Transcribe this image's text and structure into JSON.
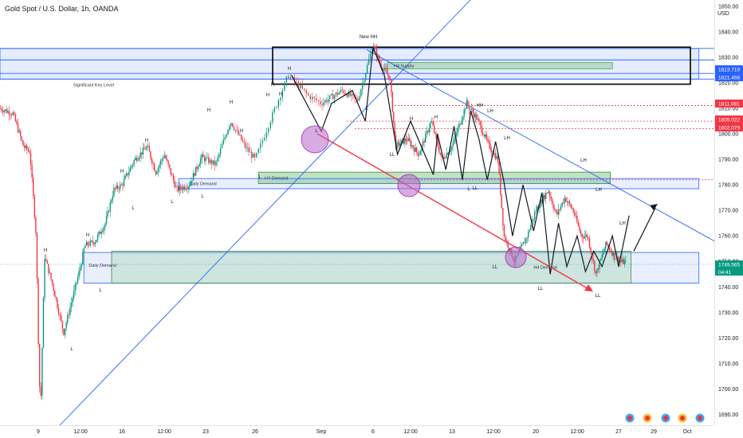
{
  "header": {
    "title": "Gold Spot / U.S. Dollar, 1h, OANDA",
    "currency": "USD"
  },
  "chart_data": {
    "type": "candlestick",
    "y_axis": {
      "ticks": [
        1690,
        1700,
        1710,
        1720,
        1730,
        1740,
        1750,
        1760,
        1770,
        1780,
        1790,
        1800,
        1810,
        1820,
        1830,
        1840,
        1850
      ],
      "range": [
        1687,
        1850
      ]
    },
    "x_axis": {
      "ticks": [
        {
          "label": "9",
          "x": 0.0
        },
        {
          "label": "12:00",
          "x": 1.0
        },
        {
          "label": "16",
          "x": 2.0
        },
        {
          "label": "12:00",
          "x": 3.0
        },
        {
          "label": "23",
          "x": 4.0
        },
        {
          "label": "26",
          "x": 5.0
        },
        {
          "label": "Sep",
          "x": 6.0
        },
        {
          "label": "6",
          "x": 7.0
        },
        {
          "label": "12:00",
          "x": 8.0
        },
        {
          "label": "13",
          "x": 9.0
        },
        {
          "label": "12:00",
          "x": 10.0
        },
        {
          "label": "20",
          "x": 11.0
        },
        {
          "label": "12:00",
          "x": 12.0
        },
        {
          "label": "27",
          "x": 13.0
        },
        {
          "label": "29",
          "x": 14.0
        },
        {
          "label": "Oct",
          "x": 15.0
        }
      ]
    },
    "price_tags": [
      {
        "value": "1823.719",
        "price": 1823.7,
        "color": "#2962ff"
      },
      {
        "value": "1821.468",
        "price": 1821.5,
        "color": "#2962ff"
      },
      {
        "value": "1811.081",
        "price": 1811.1,
        "color": "#f23645"
      },
      {
        "value": "1805.022",
        "price": 1805.0,
        "color": "#f23645"
      },
      {
        "value": "1802.079",
        "price": 1802.1,
        "color": "#f23645"
      },
      {
        "value": "1749.565",
        "price": 1749.6,
        "color": "#089981"
      }
    ],
    "countdown": "04:41",
    "zones": [
      {
        "label": "Significant Key Level",
        "kind": "key-level",
        "top": 1833.5,
        "bottom": 1821.5,
        "x0": 0.0,
        "x1": 15.35
      },
      {
        "label": "H4 Supply",
        "kind": "supply",
        "top": 1828.0,
        "bottom": 1825.5,
        "x0": 7.38,
        "x1": 12.85
      },
      {
        "label": "H4 Demand",
        "kind": "demand",
        "top": 1785.0,
        "bottom": 1780.5,
        "x0": 5.05,
        "x1": 12.8
      },
      {
        "label": "Daily Demand",
        "kind": "daily",
        "top": 1782.5,
        "bottom": 1778.5,
        "x0": 3.35,
        "x1": 15.35
      },
      {
        "label": "Daily Demand",
        "kind": "daily-lower",
        "top": 1753.5,
        "bottom": 1741.5,
        "x0": 1.08,
        "x1": 15.35
      },
      {
        "label": "H4 Demand",
        "kind": "demand-lower",
        "top": 1754.0,
        "bottom": 1741.5,
        "x0": 1.75,
        "x1": 13.35
      }
    ],
    "annotations": [
      {
        "text": "New HH",
        "x": 7.0,
        "price": 1837
      },
      {
        "text": "H",
        "x": 5.55,
        "price": 1823
      },
      {
        "text": "L",
        "x": 6.0,
        "price": 1797
      },
      {
        "text": "L",
        "x": 6.85,
        "price": 1804
      },
      {
        "text": "LL",
        "x": 7.58,
        "price": 1790
      },
      {
        "text": "H",
        "x": 8.0,
        "price": 1807
      },
      {
        "text": "H",
        "x": 8.55,
        "price": 1807
      },
      {
        "text": "L",
        "x": 8.95,
        "price": 1787
      },
      {
        "text": "HH",
        "x": 9.4,
        "price": 1810
      },
      {
        "text": "LH",
        "x": 9.6,
        "price": 1809
      },
      {
        "text": "LL",
        "x": 9.2,
        "price": 1777
      },
      {
        "text": "LH",
        "x": 9.8,
        "price": 1802
      },
      {
        "text": "LH",
        "x": 11.3,
        "price": 1788
      },
      {
        "text": "LH",
        "x": 11.65,
        "price": 1776
      },
      {
        "text": "LH",
        "x": 12.0,
        "price": 1762
      },
      {
        "text": "LL",
        "x": 9.6,
        "price": 1750
      },
      {
        "text": "LL",
        "x": 10.45,
        "price": 1738
      },
      {
        "text": "LL",
        "x": 11.55,
        "price": 1736
      },
      {
        "text": "H",
        "x": 0.85,
        "price": 1790
      },
      {
        "text": "H",
        "x": 1.7,
        "price": 1765
      },
      {
        "text": "H",
        "x": 2.35,
        "price": 1788
      },
      {
        "text": "H",
        "x": 2.85,
        "price": 1798
      },
      {
        "text": "H",
        "x": 3.45,
        "price": 1789
      },
      {
        "text": "H",
        "x": 4.0,
        "price": 1805
      },
      {
        "text": "H",
        "x": 4.45,
        "price": 1815
      },
      {
        "text": "H",
        "x": 4.8,
        "price": 1800
      },
      {
        "text": "H",
        "x": 0.45,
        "price": 1757
      },
      {
        "text": "H",
        "x": 1.0,
        "price": 1782
      },
      {
        "text": "L",
        "x": 1.4,
        "price": 1716
      },
      {
        "text": "L",
        "x": 1.95,
        "price": 1739
      },
      {
        "text": "L",
        "x": 2.6,
        "price": 1769
      },
      {
        "text": "L",
        "x": 3.35,
        "price": 1775
      },
      {
        "text": "L",
        "x": 3.9,
        "price": 1777
      },
      {
        "text": "L",
        "x": 5.0,
        "price": 1786
      }
    ]
  }
}
